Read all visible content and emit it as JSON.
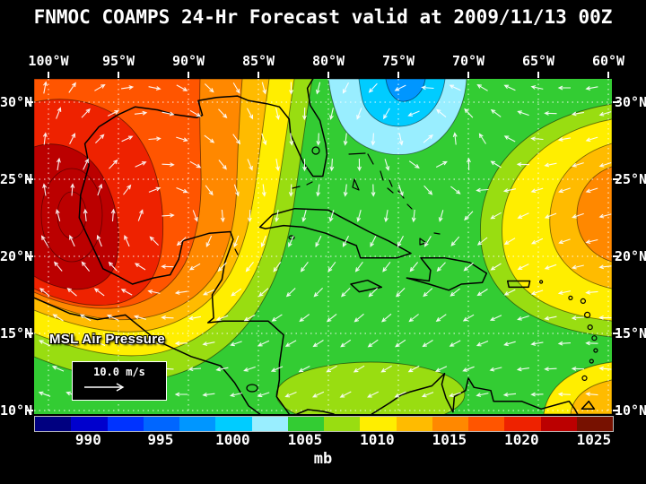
{
  "title": "FNMOC COAMPS 24-Hr Forecast valid at 2009/11/13 00Z",
  "axes": {
    "lon_labels": [
      "100°W",
      "95°W",
      "90°W",
      "85°W",
      "80°W",
      "75°W",
      "70°W",
      "65°W",
      "60°W"
    ],
    "lat_labels": [
      "30°N",
      "25°N",
      "20°N",
      "15°N",
      "10°N"
    ]
  },
  "overlay": {
    "field_label": "MSL Air Pressure",
    "wind_legend_label": "10.0 m/s"
  },
  "colorbar": {
    "unit_label": "mb",
    "tick_labels": [
      "990",
      "995",
      "1000",
      "1005",
      "1010",
      "1015",
      "1020",
      "1025"
    ],
    "tick_values": [
      990,
      995,
      1000,
      1005,
      1010,
      1015,
      1020,
      1025
    ],
    "segment_colors": [
      "#000080",
      "#0000cd",
      "#0033ff",
      "#0066ff",
      "#0096ff",
      "#00ccff",
      "#99eeff",
      "#33cc33",
      "#99dd11",
      "#ffee00",
      "#ffbb00",
      "#ff8800",
      "#ff5500",
      "#ee2200",
      "#bb0000",
      "#771100"
    ]
  },
  "colors": {
    "background": "#000000",
    "text": "#ffffff",
    "coastline": "#000000",
    "gridline": "#ffffff",
    "wind_arrow": "#ffffff"
  }
}
